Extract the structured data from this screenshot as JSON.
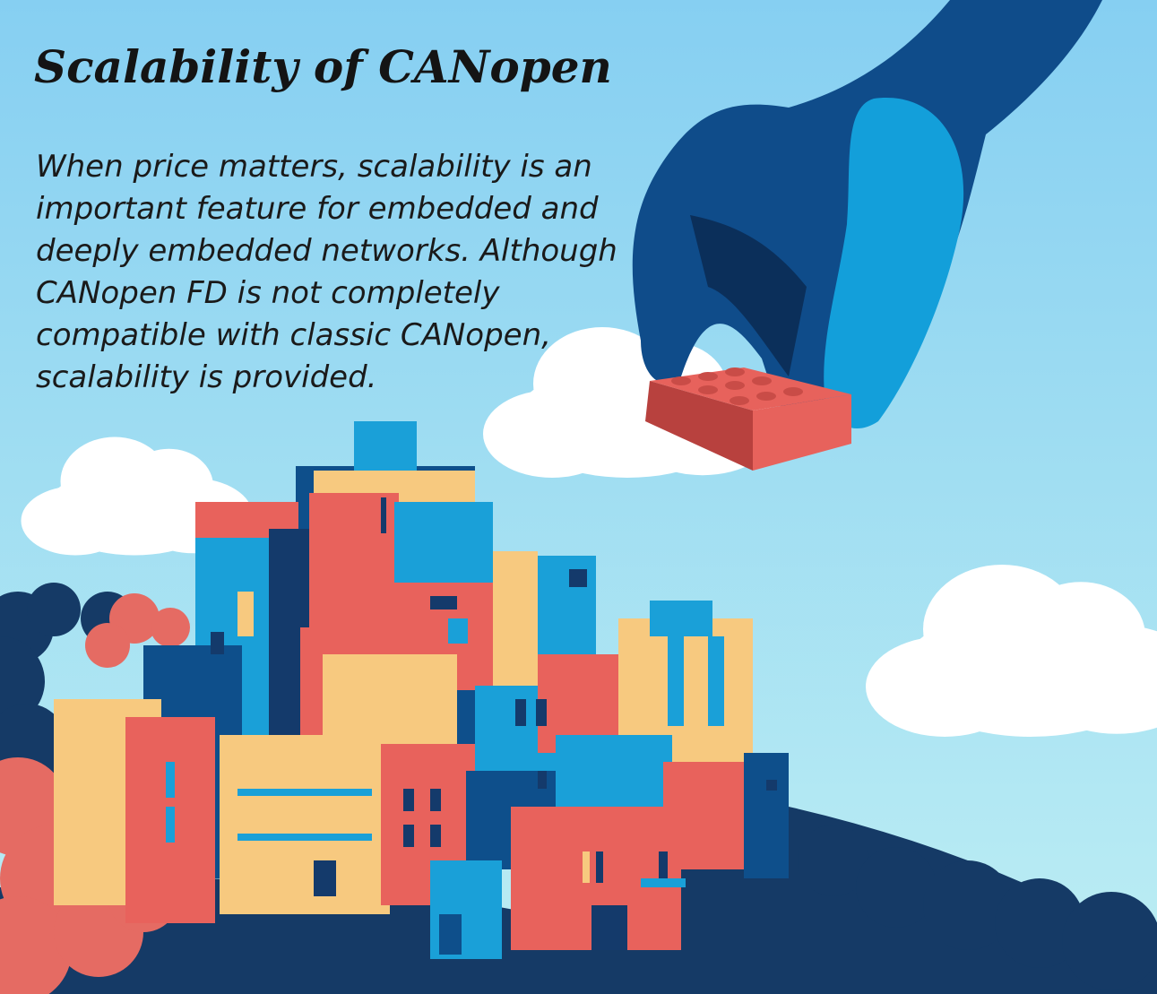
{
  "header": {
    "title": "Scalability of CANopen"
  },
  "body": {
    "lines": [
      "When price matters, scalability is an",
      "important feature for embedded and",
      "deeply embedded networks. Although",
      "CANopen FD is not completely",
      "compatible with classic CANopen,",
      "scalability is provided."
    ]
  }
}
